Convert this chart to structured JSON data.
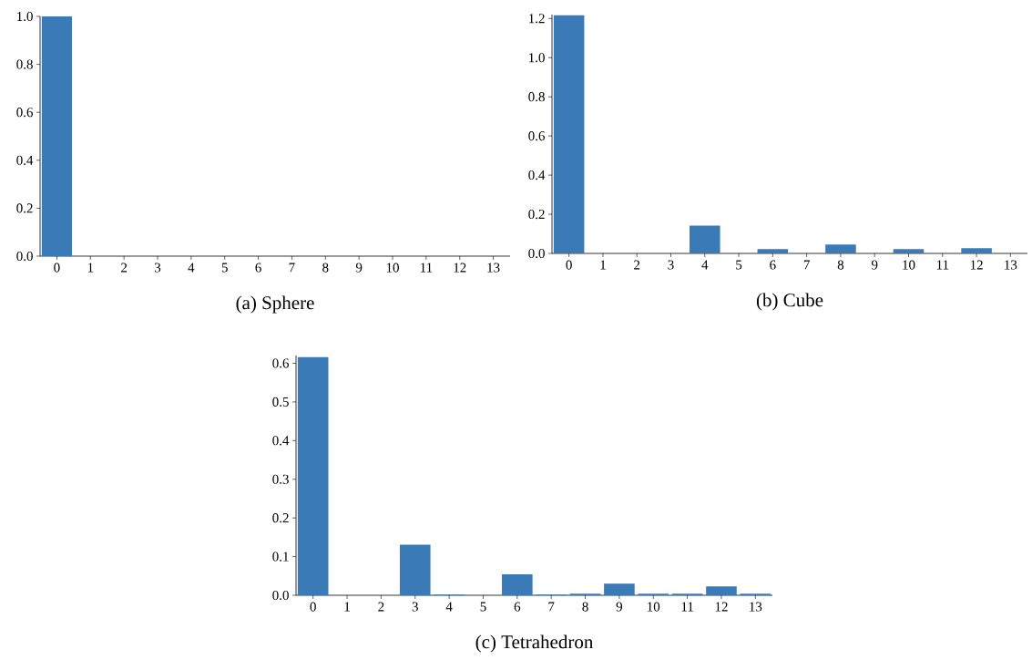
{
  "chart_data": [
    {
      "type": "bar",
      "title": "(a) Sphere",
      "categories": [
        "0",
        "1",
        "2",
        "3",
        "4",
        "5",
        "6",
        "7",
        "8",
        "9",
        "10",
        "11",
        "12",
        "13"
      ],
      "color": "#3a7bb7",
      "values": [
        1.0,
        0,
        0,
        0,
        0,
        0,
        0,
        0,
        0,
        0,
        0,
        0,
        0,
        0
      ],
      "ylim": [
        0,
        1.0
      ],
      "yticks": [
        {
          "value": 0,
          "label": "0.0"
        },
        {
          "value": 0.2,
          "label": "0.2"
        },
        {
          "value": 0.4,
          "label": "0.4"
        },
        {
          "value": 0.6,
          "label": "0.6"
        },
        {
          "value": 0.8,
          "label": "0.8"
        },
        {
          "value": 1.0,
          "label": "1.0"
        }
      ]
    },
    {
      "type": "bar",
      "title": "(b) Cube",
      "categories": [
        "0",
        "1",
        "2",
        "3",
        "4",
        "5",
        "6",
        "7",
        "8",
        "9",
        "10",
        "11",
        "12",
        "13"
      ],
      "color": "#3a7bb7",
      "values": [
        1.217,
        0,
        0,
        0,
        0.142,
        0,
        0.022,
        0,
        0.045,
        0,
        0.022,
        0,
        0.027,
        0
      ],
      "ylim": [
        0,
        1.22
      ],
      "yticks": [
        {
          "value": 0,
          "label": "0.0"
        },
        {
          "value": 0.2,
          "label": "0.2"
        },
        {
          "value": 0.4,
          "label": "0.4"
        },
        {
          "value": 0.6,
          "label": "0.6"
        },
        {
          "value": 0.8,
          "label": "0.8"
        },
        {
          "value": 1.0,
          "label": "1.0"
        },
        {
          "value": 1.2,
          "label": "1.2"
        }
      ]
    },
    {
      "type": "bar",
      "title": "(c) Tetrahedron",
      "categories": [
        "0",
        "1",
        "2",
        "3",
        "4",
        "5",
        "6",
        "7",
        "8",
        "9",
        "10",
        "11",
        "12",
        "13"
      ],
      "color": "#3a7bb7",
      "values": [
        0.616,
        0,
        0,
        0.131,
        0.002,
        0,
        0.054,
        0.002,
        0.004,
        0.03,
        0.004,
        0.004,
        0.023,
        0.004
      ],
      "ylim": [
        0,
        0.62
      ],
      "yticks": [
        {
          "value": 0,
          "label": "0.0"
        },
        {
          "value": 0.1,
          "label": "0.1"
        },
        {
          "value": 0.2,
          "label": "0.2"
        },
        {
          "value": 0.3,
          "label": "0.3"
        },
        {
          "value": 0.4,
          "label": "0.4"
        },
        {
          "value": 0.5,
          "label": "0.5"
        },
        {
          "value": 0.6,
          "label": "0.6"
        }
      ]
    }
  ]
}
